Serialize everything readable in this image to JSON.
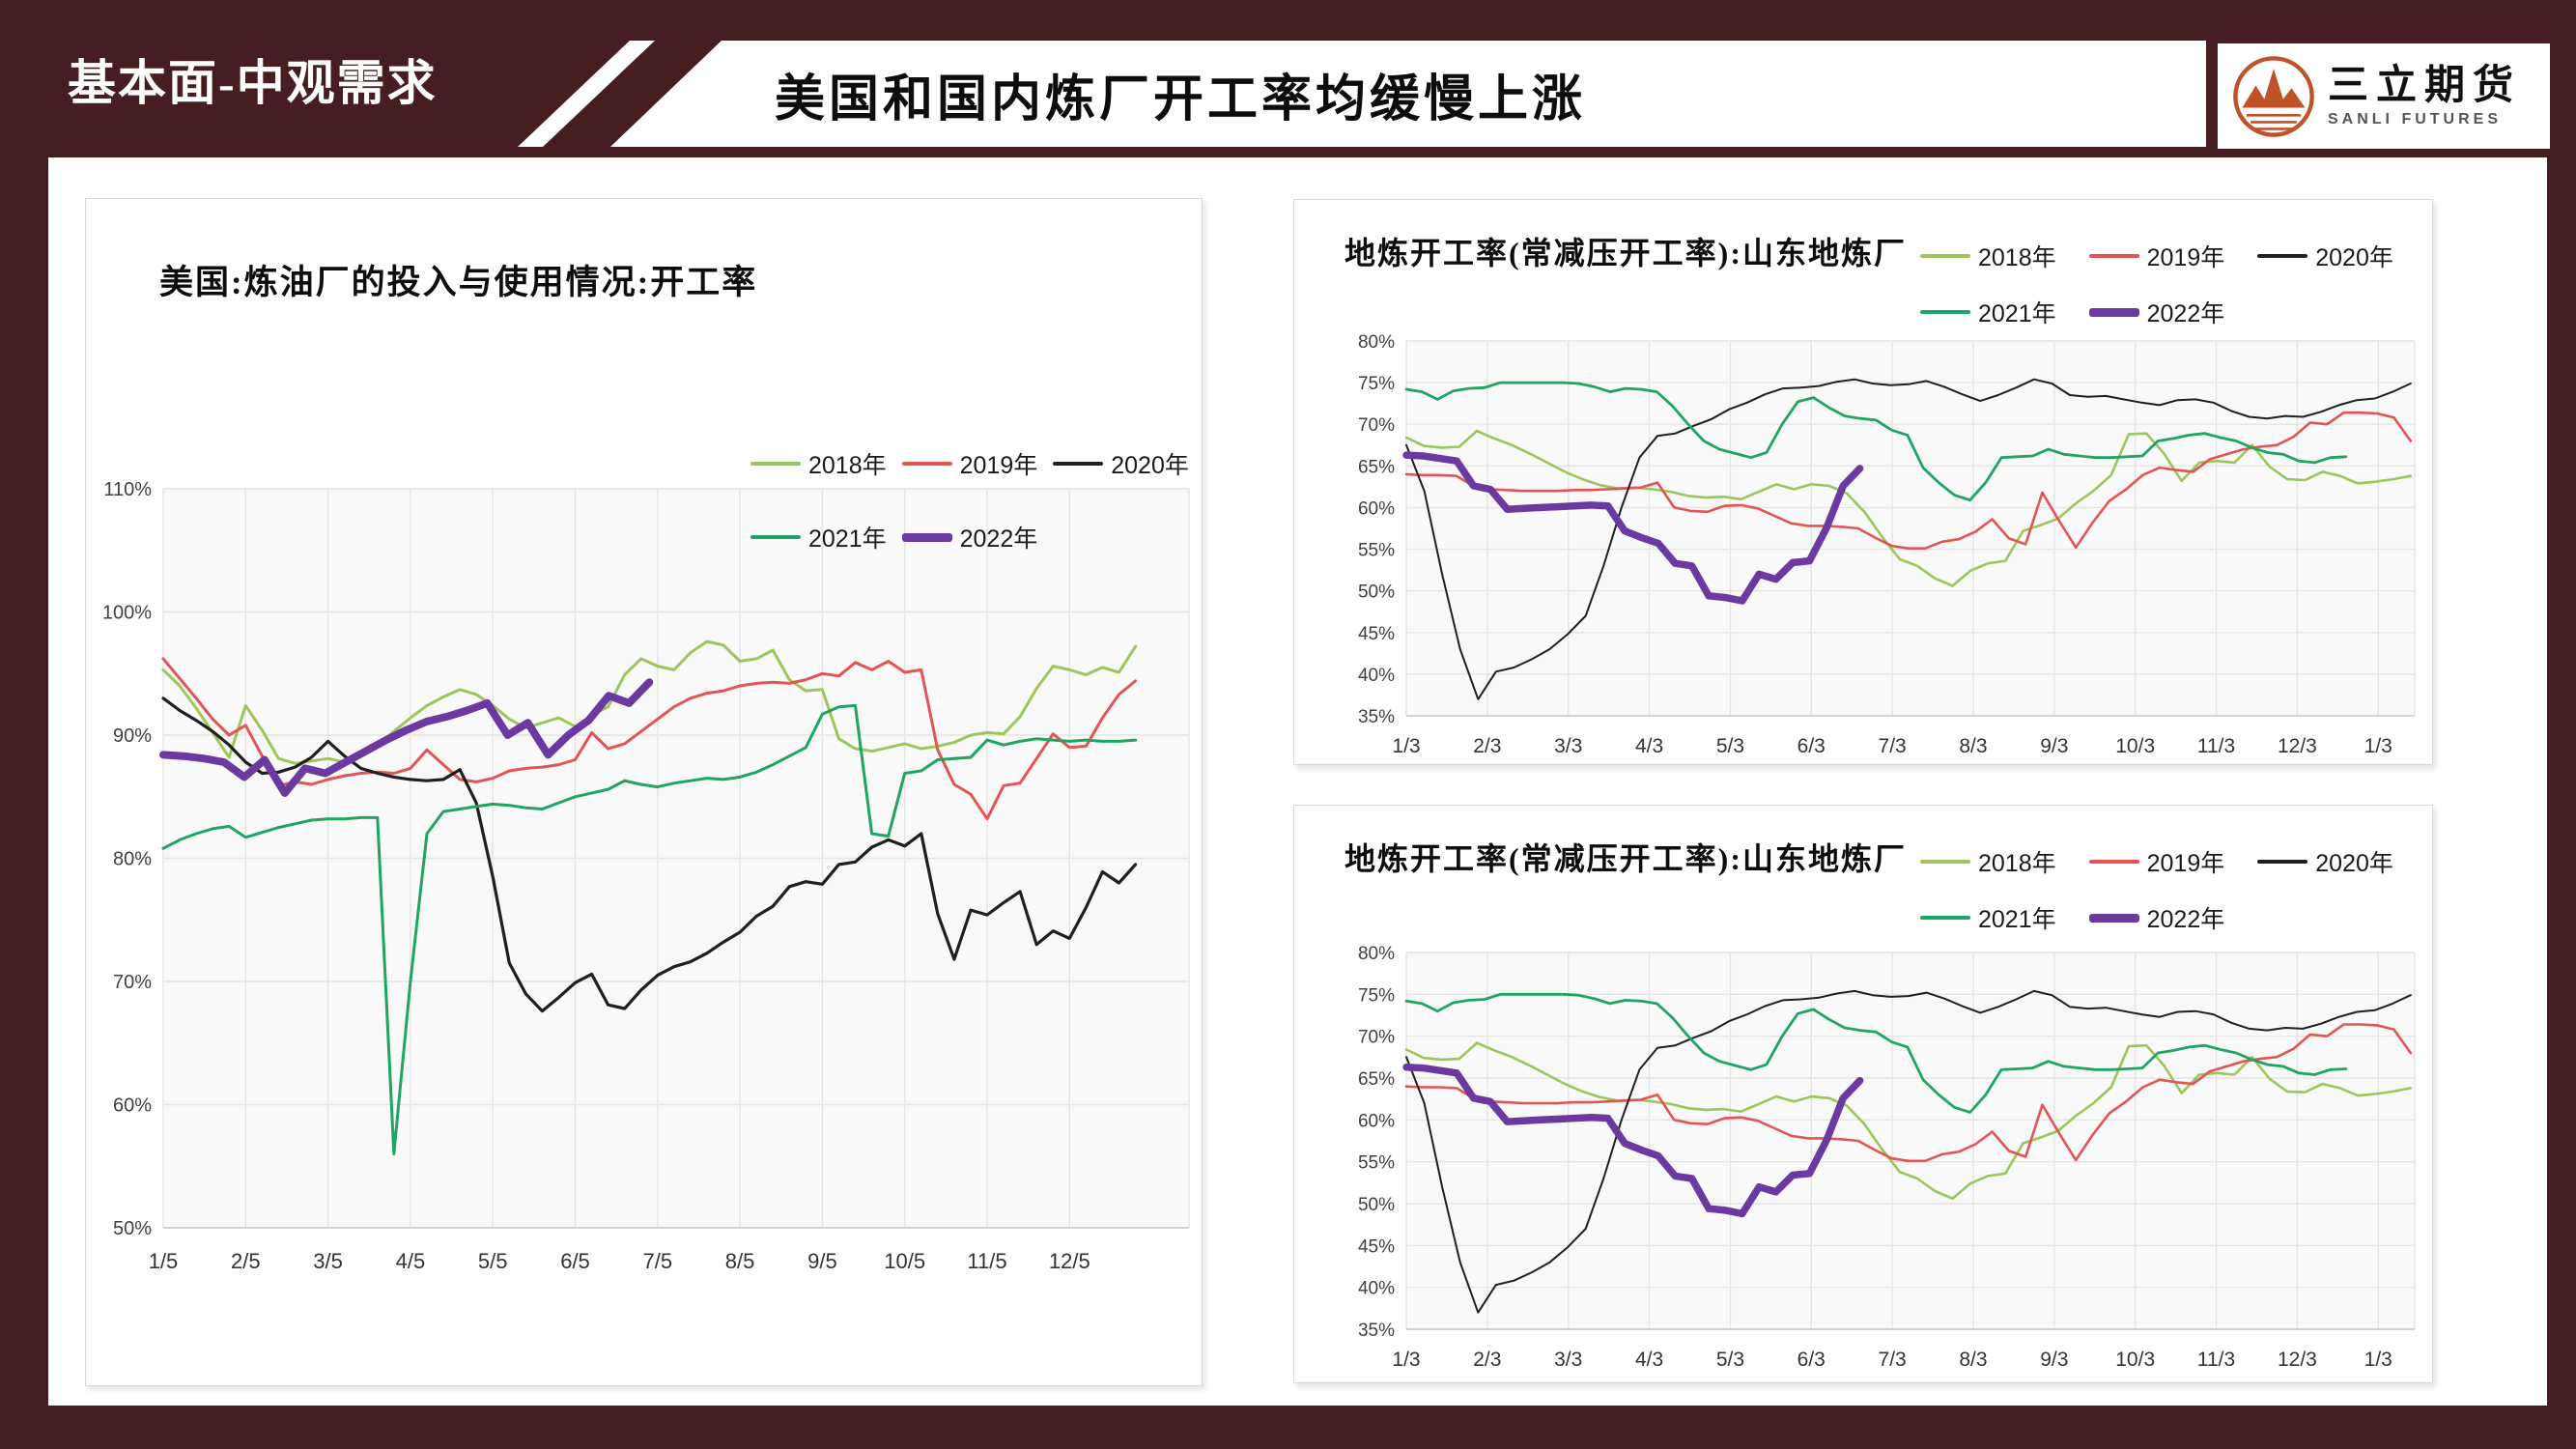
{
  "header": {
    "section_label": "基本面-中观需求",
    "title": "美国和国内炼厂开工率均缓慢上涨",
    "logo_name": "三立期货",
    "logo_subtitle": "SANLI FUTURES"
  },
  "colors": {
    "maroon": "#461D21",
    "logo_orange": "#C05229",
    "plot_background": "#F9F9F9",
    "gridline": "#E4E4E4",
    "series_2018": "#9CC65A",
    "series_2019": "#E25554",
    "series_2020": "#1F1F1F",
    "series_2021": "#1FA563",
    "series_2022": "#6B3AA0"
  },
  "chart_data": [
    {
      "type": "line",
      "title": "美国:炼油厂的投入与使用情况:开工率",
      "ylabel": "",
      "ylim": [
        50,
        110
      ],
      "y_step": 10,
      "y_suffix": "%",
      "grid": "on",
      "legend_position": "top-right-two-rows",
      "x_labels": [
        "1/5",
        "2/5",
        "3/5",
        "4/5",
        "5/5",
        "6/5",
        "7/5",
        "8/5",
        "9/5",
        "10/5",
        "11/5",
        "12/5"
      ],
      "x_axis_span": 12.45,
      "series": [
        {
          "name": "2018年",
          "color": "#9CC65A",
          "width": 3,
          "x_end": 11.8,
          "values": [
            95.3,
            94.0,
            92.2,
            90.2,
            88.2,
            92.4,
            90.4,
            88.1,
            87.7,
            87.9,
            88.1,
            87.8,
            88.3,
            89.2,
            90.3,
            91.4,
            92.4,
            93.1,
            93.7,
            93.3,
            92.4,
            91.3,
            90.6,
            91.0,
            91.4,
            90.7,
            91.6,
            92.3,
            94.9,
            96.2,
            95.6,
            95.3,
            96.7,
            97.6,
            97.3,
            96.0,
            96.2,
            96.9,
            94.5,
            93.6,
            93.7,
            89.7,
            88.9,
            88.7,
            89.0,
            89.3,
            88.9,
            89.1,
            89.4,
            90.0,
            90.2,
            90.1,
            91.5,
            93.8,
            95.6,
            95.3,
            94.9,
            95.5,
            95.1,
            97.2
          ]
        },
        {
          "name": "2019年",
          "color": "#E25554",
          "width": 3,
          "x_end": 11.8,
          "values": [
            96.2,
            94.6,
            93.0,
            91.3,
            90.0,
            90.8,
            88.3,
            85.9,
            86.2,
            86.0,
            86.4,
            86.7,
            86.9,
            87.0,
            86.9,
            87.3,
            88.8,
            87.6,
            86.4,
            86.2,
            86.5,
            87.1,
            87.3,
            87.4,
            87.6,
            88.0,
            90.2,
            88.9,
            89.3,
            90.3,
            91.3,
            92.3,
            93.0,
            93.4,
            93.6,
            94.0,
            94.2,
            94.3,
            94.2,
            94.5,
            95.0,
            94.8,
            95.9,
            95.3,
            96.0,
            95.1,
            95.3,
            88.8,
            86.0,
            85.2,
            83.2,
            85.9,
            86.1,
            88.1,
            90.1,
            89.0,
            89.1,
            91.4,
            93.3,
            94.4
          ]
        },
        {
          "name": "2020年",
          "color": "#1F1F1F",
          "width": 3.2,
          "x_end": 11.8,
          "values": [
            93.0,
            92.0,
            91.2,
            90.3,
            89.2,
            87.8,
            86.9,
            87.0,
            87.4,
            88.2,
            89.5,
            88.3,
            87.3,
            86.9,
            86.6,
            86.4,
            86.3,
            86.4,
            87.2,
            84.5,
            78.5,
            71.5,
            69.0,
            67.6,
            68.7,
            69.9,
            70.6,
            68.1,
            67.8,
            69.3,
            70.5,
            71.2,
            71.6,
            72.3,
            73.2,
            74.0,
            75.3,
            76.1,
            77.7,
            78.1,
            77.9,
            79.5,
            79.7,
            80.9,
            81.5,
            81.0,
            82.0,
            75.5,
            71.8,
            75.8,
            75.4,
            76.4,
            77.3,
            73.0,
            74.1,
            73.5,
            76.0,
            78.9,
            78.0,
            79.5
          ]
        },
        {
          "name": "2021年",
          "color": "#1FA563",
          "width": 3,
          "x_end": 11.8,
          "values": [
            80.8,
            81.5,
            82.0,
            82.4,
            82.6,
            81.7,
            82.1,
            82.5,
            82.8,
            83.1,
            83.2,
            83.2,
            83.3,
            83.3,
            56.0,
            70.0,
            82.0,
            83.8,
            84.0,
            84.2,
            84.4,
            84.3,
            84.1,
            84.0,
            84.5,
            85.0,
            85.3,
            85.6,
            86.3,
            86.0,
            85.8,
            86.1,
            86.3,
            86.5,
            86.4,
            86.6,
            87.0,
            87.6,
            88.3,
            89.0,
            91.7,
            92.3,
            92.4,
            82.0,
            81.8,
            86.9,
            87.1,
            88.0,
            88.1,
            88.2,
            89.6,
            89.2,
            89.5,
            89.7,
            89.6,
            89.5,
            89.6,
            89.5,
            89.5,
            89.6
          ]
        },
        {
          "name": "2022年",
          "color": "#6B3AA0",
          "width": 8,
          "x_end": 5.9,
          "values": [
            88.4,
            88.3,
            88.1,
            87.8,
            86.6,
            88.0,
            85.3,
            87.3,
            86.9,
            87.8,
            88.7,
            89.6,
            90.4,
            91.1,
            91.5,
            92.0,
            92.6,
            90.0,
            91.0,
            88.4,
            90.0,
            91.2,
            93.2,
            92.6,
            94.3
          ]
        }
      ]
    },
    {
      "type": "line",
      "title": "地炼开工率(常减压开工率):山东地炼厂",
      "ylabel": "",
      "ylim": [
        35,
        80
      ],
      "y_step": 5,
      "y_suffix": "%",
      "grid": "on",
      "legend_position": "top-right-two-rows",
      "x_labels": [
        "1/3",
        "2/3",
        "3/3",
        "4/3",
        "5/3",
        "6/3",
        "7/3",
        "8/3",
        "9/3",
        "10/3",
        "11/3",
        "12/3",
        "1/3"
      ],
      "x_axis_span": 12.45,
      "series": [
        {
          "name": "2018年",
          "color": "#9CC65A",
          "width": 2.6,
          "x_end": 12.4,
          "values": [
            68.4,
            67.4,
            67.2,
            67.3,
            69.2,
            68.3,
            67.5,
            66.5,
            65.4,
            64.3,
            63.4,
            62.7,
            62.3,
            62.4,
            62.2,
            61.9,
            61.4,
            61.2,
            61.3,
            61.0,
            61.9,
            62.8,
            62.2,
            62.8,
            62.6,
            61.7,
            59.5,
            56.5,
            53.8,
            53.0,
            51.5,
            50.6,
            52.4,
            53.3,
            53.6,
            57.2,
            57.9,
            58.7,
            60.5,
            62.0,
            63.9,
            68.8,
            68.9,
            66.5,
            63.2,
            65.4,
            65.6,
            65.4,
            67.5,
            64.9,
            63.4,
            63.3,
            64.3,
            63.8,
            62.9,
            63.1,
            63.4,
            63.8
          ]
        },
        {
          "name": "2019年",
          "color": "#E25554",
          "width": 2.6,
          "x_end": 12.4,
          "values": [
            64.0,
            63.9,
            63.9,
            63.8,
            62.6,
            62.2,
            62.1,
            62.0,
            62.0,
            62.0,
            62.1,
            62.1,
            62.2,
            62.3,
            62.4,
            63.0,
            60.0,
            59.6,
            59.5,
            60.2,
            60.3,
            59.9,
            59.0,
            58.1,
            57.8,
            57.8,
            57.7,
            57.5,
            56.4,
            55.4,
            55.1,
            55.1,
            55.9,
            56.2,
            57.1,
            58.6,
            56.3,
            55.6,
            61.8,
            58.4,
            55.2,
            58.2,
            60.8,
            62.2,
            63.9,
            64.8,
            64.5,
            64.3,
            65.8,
            66.4,
            67.0,
            67.3,
            67.5,
            68.5,
            70.2,
            70.0,
            71.4,
            71.4,
            71.3,
            70.8,
            68.0
          ]
        },
        {
          "name": "2020年",
          "color": "#1F1F1F",
          "width": 2,
          "x_end": 12.4,
          "values": [
            67.5,
            62.0,
            52.0,
            43.0,
            37.0,
            40.3,
            40.8,
            41.8,
            43.0,
            44.8,
            47.0,
            53.0,
            60.0,
            66.0,
            68.6,
            68.9,
            69.8,
            70.6,
            71.8,
            72.6,
            73.6,
            74.3,
            74.4,
            74.6,
            75.1,
            75.4,
            74.9,
            74.7,
            74.8,
            75.2,
            74.5,
            73.6,
            72.8,
            73.5,
            74.4,
            75.4,
            74.9,
            73.5,
            73.3,
            73.4,
            73.0,
            72.6,
            72.3,
            72.9,
            73.0,
            72.6,
            71.6,
            70.9,
            70.7,
            71.0,
            70.9,
            71.5,
            72.3,
            72.9,
            73.1,
            73.9,
            74.9
          ]
        },
        {
          "name": "2021年",
          "color": "#1FA563",
          "width": 2.8,
          "x_end": 11.6,
          "values": [
            74.2,
            73.9,
            73.0,
            74.0,
            74.3,
            74.4,
            75.0,
            75.0,
            75.0,
            75.0,
            75.0,
            74.9,
            74.5,
            73.9,
            74.3,
            74.2,
            73.9,
            72.2,
            70.0,
            68.0,
            67.0,
            66.5,
            66.0,
            66.6,
            70.0,
            72.7,
            73.2,
            72.0,
            71.0,
            70.7,
            70.5,
            69.3,
            68.7,
            64.8,
            63.0,
            61.5,
            60.9,
            63.0,
            66.0,
            66.1,
            66.2,
            67.0,
            66.4,
            66.2,
            66.0,
            66.0,
            66.1,
            66.2,
            68.0,
            68.3,
            68.7,
            68.9,
            68.4,
            68.0,
            67.2,
            66.6,
            66.4,
            65.6,
            65.4,
            66.0,
            66.1
          ]
        },
        {
          "name": "2022年",
          "color": "#6B3AA0",
          "width": 7.5,
          "x_end": 5.6,
          "values": [
            66.3,
            66.2,
            65.9,
            65.6,
            62.6,
            62.2,
            59.8,
            59.9,
            60.0,
            60.1,
            60.2,
            60.3,
            60.2,
            57.2,
            56.4,
            55.7,
            53.3,
            53.0,
            49.4,
            49.2,
            48.8,
            52.0,
            51.4,
            53.4,
            53.6,
            57.5,
            62.6,
            64.7
          ]
        }
      ]
    },
    {
      "type": "line",
      "title": "地炼开工率(常减压开工率):山东地炼厂",
      "ylabel": "",
      "ylim": [
        35,
        80
      ],
      "y_step": 5,
      "y_suffix": "%",
      "grid": "on",
      "legend_position": "top-right-two-rows",
      "x_labels": [
        "1/3",
        "2/3",
        "3/3",
        "4/3",
        "5/3",
        "6/3",
        "7/3",
        "8/3",
        "9/3",
        "10/3",
        "11/3",
        "12/3",
        "1/3"
      ],
      "x_axis_span": 12.45,
      "series": [
        {
          "name": "2018年",
          "color": "#9CC65A",
          "width": 2.6,
          "x_end": 12.4,
          "values": [
            68.4,
            67.4,
            67.2,
            67.3,
            69.2,
            68.3,
            67.5,
            66.5,
            65.4,
            64.3,
            63.4,
            62.7,
            62.3,
            62.4,
            62.2,
            61.9,
            61.4,
            61.2,
            61.3,
            61.0,
            61.9,
            62.8,
            62.2,
            62.8,
            62.6,
            61.7,
            59.5,
            56.5,
            53.8,
            53.0,
            51.5,
            50.6,
            52.4,
            53.3,
            53.6,
            57.2,
            57.9,
            58.7,
            60.5,
            62.0,
            63.9,
            68.8,
            68.9,
            66.5,
            63.2,
            65.4,
            65.6,
            65.4,
            67.5,
            64.9,
            63.4,
            63.3,
            64.3,
            63.8,
            62.9,
            63.1,
            63.4,
            63.8
          ]
        },
        {
          "name": "2019年",
          "color": "#E25554",
          "width": 2.6,
          "x_end": 12.4,
          "values": [
            64.0,
            63.9,
            63.9,
            63.8,
            62.6,
            62.2,
            62.1,
            62.0,
            62.0,
            62.0,
            62.1,
            62.1,
            62.2,
            62.3,
            62.4,
            63.0,
            60.0,
            59.6,
            59.5,
            60.2,
            60.3,
            59.9,
            59.0,
            58.1,
            57.8,
            57.8,
            57.7,
            57.5,
            56.4,
            55.4,
            55.1,
            55.1,
            55.9,
            56.2,
            57.1,
            58.6,
            56.3,
            55.6,
            61.8,
            58.4,
            55.2,
            58.2,
            60.8,
            62.2,
            63.9,
            64.8,
            64.5,
            64.3,
            65.8,
            66.4,
            67.0,
            67.3,
            67.5,
            68.5,
            70.2,
            70.0,
            71.4,
            71.4,
            71.3,
            70.8,
            68.0
          ]
        },
        {
          "name": "2020年",
          "color": "#1F1F1F",
          "width": 2,
          "x_end": 12.4,
          "values": [
            67.5,
            62.0,
            52.0,
            43.0,
            37.0,
            40.3,
            40.8,
            41.8,
            43.0,
            44.8,
            47.0,
            53.0,
            60.0,
            66.0,
            68.6,
            68.9,
            69.8,
            70.6,
            71.8,
            72.6,
            73.6,
            74.3,
            74.4,
            74.6,
            75.1,
            75.4,
            74.9,
            74.7,
            74.8,
            75.2,
            74.5,
            73.6,
            72.8,
            73.5,
            74.4,
            75.4,
            74.9,
            73.5,
            73.3,
            73.4,
            73.0,
            72.6,
            72.3,
            72.9,
            73.0,
            72.6,
            71.6,
            70.9,
            70.7,
            71.0,
            70.9,
            71.5,
            72.3,
            72.9,
            73.1,
            73.9,
            74.9
          ]
        },
        {
          "name": "2021年",
          "color": "#1FA563",
          "width": 2.8,
          "x_end": 11.6,
          "values": [
            74.2,
            73.9,
            73.0,
            74.0,
            74.3,
            74.4,
            75.0,
            75.0,
            75.0,
            75.0,
            75.0,
            74.9,
            74.5,
            73.9,
            74.3,
            74.2,
            73.9,
            72.2,
            70.0,
            68.0,
            67.0,
            66.5,
            66.0,
            66.6,
            70.0,
            72.7,
            73.2,
            72.0,
            71.0,
            70.7,
            70.5,
            69.3,
            68.7,
            64.8,
            63.0,
            61.5,
            60.9,
            63.0,
            66.0,
            66.1,
            66.2,
            67.0,
            66.4,
            66.2,
            66.0,
            66.0,
            66.1,
            66.2,
            68.0,
            68.3,
            68.7,
            68.9,
            68.4,
            68.0,
            67.2,
            66.6,
            66.4,
            65.6,
            65.4,
            66.0,
            66.1
          ]
        },
        {
          "name": "2022年",
          "color": "#6B3AA0",
          "width": 7.5,
          "x_end": 5.6,
          "values": [
            66.3,
            66.2,
            65.9,
            65.6,
            62.6,
            62.2,
            59.8,
            59.9,
            60.0,
            60.1,
            60.2,
            60.3,
            60.2,
            57.2,
            56.4,
            55.7,
            53.3,
            53.0,
            49.4,
            49.2,
            48.8,
            52.0,
            51.4,
            53.4,
            53.6,
            57.5,
            62.6,
            64.7
          ]
        }
      ]
    }
  ]
}
